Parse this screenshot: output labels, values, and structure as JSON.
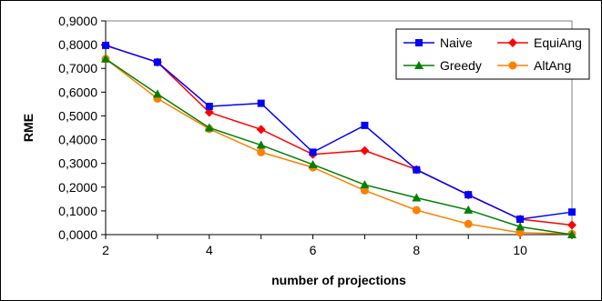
{
  "chart_data": {
    "type": "line",
    "xlabel": "number of projections",
    "ylabel": "RME",
    "xlim": [
      2,
      11
    ],
    "ylim": [
      0,
      0.9
    ],
    "xticks": [
      2,
      4,
      6,
      8,
      10
    ],
    "yticks": [
      0,
      0.1,
      0.2,
      0.3,
      0.4,
      0.5,
      0.6,
      0.7,
      0.8,
      0.9
    ],
    "ytick_labels": [
      "0,0000",
      "0,1000",
      "0,2000",
      "0,3000",
      "0,4000",
      "0,5000",
      "0,6000",
      "0,7000",
      "0,8000",
      "0,9000"
    ],
    "xtick_labels": [
      "2",
      "4",
      "6",
      "8",
      "10"
    ],
    "grid": false,
    "legend_position": "top-right",
    "x": [
      2,
      3,
      4,
      5,
      6,
      7,
      8,
      9,
      10,
      11
    ],
    "series": [
      {
        "name": "Naive",
        "color": "#0000ff",
        "marker": "square",
        "values": [
          0.797,
          0.726,
          0.54,
          0.553,
          0.347,
          0.46,
          0.273,
          0.168,
          0.065,
          0.095
        ]
      },
      {
        "name": "EquiAng",
        "color": "#ff0000",
        "marker": "diamond",
        "values": [
          0.797,
          0.726,
          0.515,
          0.443,
          0.338,
          0.354,
          0.274,
          0.167,
          0.065,
          0.04
        ]
      },
      {
        "name": "Greedy",
        "color": "#008000",
        "marker": "triangle",
        "values": [
          0.74,
          0.592,
          0.45,
          0.377,
          0.295,
          0.21,
          0.155,
          0.104,
          0.033,
          0.0
        ]
      },
      {
        "name": "AltAng",
        "color": "#ff8000",
        "marker": "circle",
        "values": [
          0.74,
          0.573,
          0.445,
          0.347,
          0.283,
          0.186,
          0.103,
          0.045,
          0.008,
          0.003
        ]
      }
    ]
  }
}
